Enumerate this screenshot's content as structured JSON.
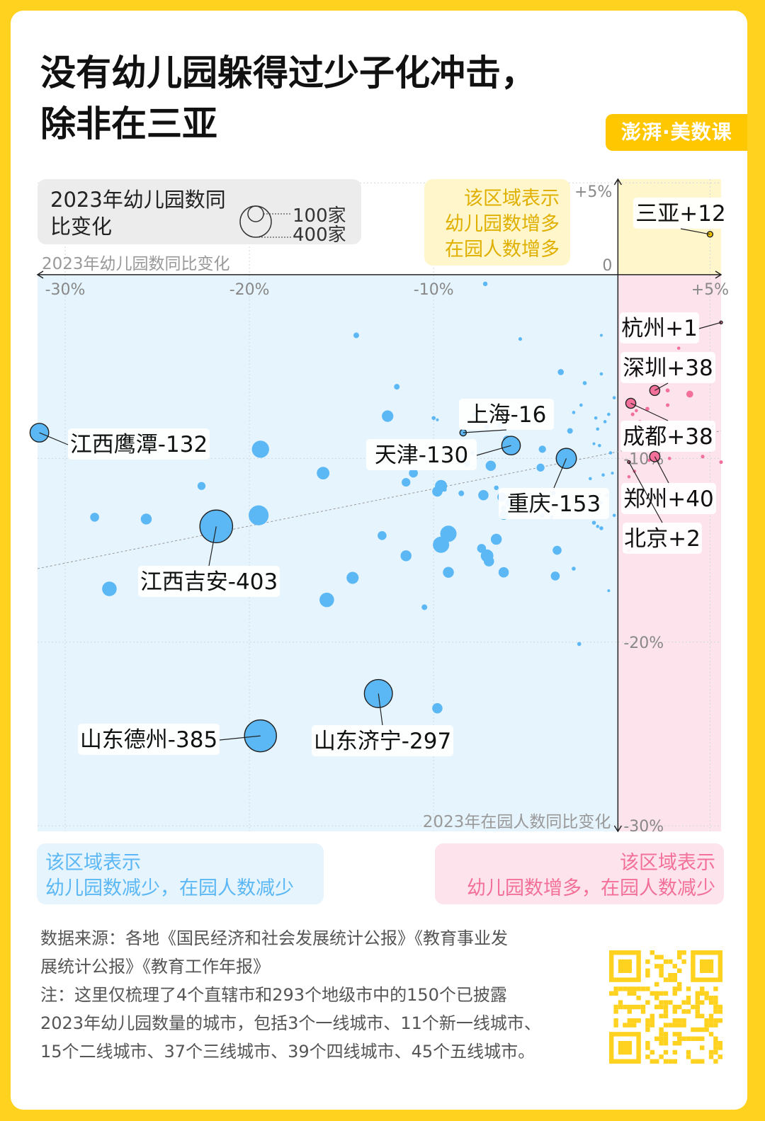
{
  "title": {
    "line1": "没有幼儿园躲得过少子化冲击，",
    "line2": "除非在三亚"
  },
  "brand": {
    "text": "澎湃·美数课"
  },
  "legend": {
    "title": "2023年幼儿园数同比变化",
    "size_small": "100家",
    "size_large": "400家"
  },
  "regions": {
    "top_right": "该区域表示\n幼儿园数增多\n在园人数增多",
    "bottom_left": "该区域表示\n幼儿园数减少，在园人数减少",
    "bottom_right": "该区域表示\n幼儿园数增多，在园人数减少"
  },
  "colors": {
    "decrease": "#5BB8F5",
    "increase": "#F2709A",
    "gain_gain": "#F2C500",
    "decrease_bg": "#E6F4FD",
    "increase_bg": "#FDE3EB",
    "gain_gain_bg": "#FFF6CC",
    "frame": "#FFD21F"
  },
  "notes": {
    "line1": "数据来源：各地《国民经济和社会发展统计公报》《教育事业发",
    "line2": "展统计公报》《教育工作年报》",
    "line3": "注：这里仅梳理了4个直辖市和293个地级市中的150个已披露",
    "line4": "2023年幼儿园数量的城市，包括3个一线城市、11个新一线城市、",
    "line5": "15个二线城市、37个三线城市、39个四线城市、45个五线城市。"
  },
  "chart_data": {
    "type": "scatter",
    "title": "",
    "xlabel": "2023年幼儿园数同比变化",
    "ylabel": "2023年在园人数同比变化",
    "xlim": [
      -31.5,
      5.6
    ],
    "ylim": [
      -30.3,
      5.2
    ],
    "xticks": [
      {
        "value": -30,
        "label": "-30%"
      },
      {
        "value": -20,
        "label": "-20%"
      },
      {
        "value": -10,
        "label": "-10%"
      },
      {
        "value": 5,
        "label": "+5%"
      }
    ],
    "yticks": [
      {
        "value": 5,
        "label": "+5%"
      },
      {
        "value": 0,
        "label": "0"
      },
      {
        "value": -10,
        "label": "-10%"
      },
      {
        "value": -20,
        "label": "-20%"
      },
      {
        "value": -30,
        "label": "-30%"
      }
    ],
    "grid": true,
    "size_encoding": "2023年幼儿园数变化（家）",
    "size_legend": [
      100,
      400
    ],
    "trendline": {
      "from": [
        -31.5,
        -16.0
      ],
      "to": [
        5.6,
        -8.5
      ]
    },
    "labeled": [
      {
        "city": "三亚",
        "label": "三亚+12",
        "x": 5.0,
        "y": 2.2,
        "size": 12,
        "group": "up"
      },
      {
        "city": "杭州",
        "label": "杭州+1",
        "x": 5.6,
        "y": -2.6,
        "size": 1,
        "group": "pink"
      },
      {
        "city": "深圳",
        "label": "深圳+38",
        "x": 2.0,
        "y": -6.3,
        "size": 38,
        "group": "pink"
      },
      {
        "city": "成都",
        "label": "成都+38",
        "x": 0.7,
        "y": -7.0,
        "size": 38,
        "group": "pink"
      },
      {
        "city": "郑州",
        "label": "郑州+40",
        "x": 2.0,
        "y": -9.9,
        "size": 40,
        "group": "pink"
      },
      {
        "city": "北京",
        "label": "北京+2",
        "x": 0.6,
        "y": -10.2,
        "size": 2,
        "group": "pink"
      },
      {
        "city": "江西鹰潭",
        "label": "江西鹰潭-132",
        "x": -31.4,
        "y": -8.6,
        "size": 132,
        "group": "blue"
      },
      {
        "city": "上海",
        "label": "上海-16",
        "x": -8.4,
        "y": -8.6,
        "size": 16,
        "group": "blue"
      },
      {
        "city": "天津",
        "label": "天津-130",
        "x": -5.8,
        "y": -9.3,
        "size": 130,
        "group": "blue"
      },
      {
        "city": "重庆",
        "label": "重庆-153",
        "x": -2.8,
        "y": -10.0,
        "size": 153,
        "group": "blue"
      },
      {
        "city": "江西吉安",
        "label": "江西吉安-403",
        "x": -21.8,
        "y": -13.7,
        "size": 403,
        "group": "blue"
      },
      {
        "city": "山东德州",
        "label": "山东德州-385",
        "x": -19.4,
        "y": -25.1,
        "size": 385,
        "group": "blue"
      },
      {
        "city": "山东济宁",
        "label": "山东济宁-297",
        "x": -13.0,
        "y": -22.8,
        "size": 297,
        "group": "blue"
      }
    ],
    "others": [
      [
        -7.2,
        -0.5,
        8
      ],
      [
        -14.2,
        -3.3,
        12
      ],
      [
        -5.3,
        -3.5,
        5
      ],
      [
        -12.0,
        -6.1,
        12
      ],
      [
        -3.1,
        -5.3,
        14
      ],
      [
        -1.8,
        -5.9,
        6
      ],
      [
        -12.5,
        -7.7,
        50
      ],
      [
        -10.0,
        -7.8,
        6
      ],
      [
        -9.8,
        -7.9,
        3
      ],
      [
        -7.8,
        -7.6,
        6
      ],
      [
        -6.5,
        -7.6,
        8
      ],
      [
        -6.4,
        -8.2,
        12
      ],
      [
        -7.1,
        -8.3,
        12
      ],
      [
        -6.0,
        -9.0,
        30
      ],
      [
        -19.4,
        -9.5,
        112
      ],
      [
        -9.4,
        -9.7,
        6
      ],
      [
        -7.9,
        -9.7,
        6
      ],
      [
        -4.1,
        -9.5,
        20
      ],
      [
        -2.6,
        -8.5,
        12
      ],
      [
        -8.4,
        -10.0,
        12
      ],
      [
        -8.2,
        -10.3,
        12
      ],
      [
        -6.9,
        -10.4,
        40
      ],
      [
        -4.2,
        -10.5,
        24
      ],
      [
        -16.0,
        -10.8,
        60
      ],
      [
        -11.1,
        -10.8,
        30
      ],
      [
        -11.5,
        -11.3,
        28
      ],
      [
        -9.4,
        -11.7,
        6
      ],
      [
        -9.8,
        -11.8,
        40
      ],
      [
        -6.6,
        -11.6,
        8
      ],
      [
        -22.6,
        -11.5,
        24
      ],
      [
        -9.6,
        -11.5,
        55
      ],
      [
        -8.5,
        -11.9,
        12
      ],
      [
        -7.3,
        -12.0,
        40
      ],
      [
        -6.3,
        -12.1,
        30
      ],
      [
        -5.9,
        -12.4,
        24
      ],
      [
        -3.5,
        -11.9,
        6
      ],
      [
        -2.0,
        -12.3,
        8
      ],
      [
        -6.2,
        -12.7,
        12
      ],
      [
        -6.2,
        -13.1,
        30
      ],
      [
        -4.7,
        -12.7,
        8
      ],
      [
        -4.1,
        -13.1,
        8
      ],
      [
        -3.6,
        -13.2,
        6
      ],
      [
        -19.5,
        -13.1,
        150
      ],
      [
        -28.4,
        -13.2,
        30
      ],
      [
        -25.6,
        -13.3,
        45
      ],
      [
        -1.3,
        -13.5,
        6
      ],
      [
        -0.9,
        -13.8,
        6
      ],
      [
        -12.8,
        -14.2,
        30
      ],
      [
        -9.2,
        -14.1,
        100
      ],
      [
        -9.6,
        -14.7,
        100
      ],
      [
        -6.6,
        -14.4,
        45
      ],
      [
        -7.4,
        -14.9,
        30
      ],
      [
        -3.3,
        -15.0,
        30
      ],
      [
        -7.1,
        -15.3,
        60
      ],
      [
        -7.0,
        -15.6,
        40
      ],
      [
        -11.5,
        -15.3,
        45
      ],
      [
        -9.2,
        -16.2,
        45
      ],
      [
        -14.4,
        -16.5,
        55
      ],
      [
        -27.6,
        -17.1,
        80
      ],
      [
        -6.2,
        -16.2,
        40
      ],
      [
        -3.4,
        -16.4,
        30
      ],
      [
        -2.4,
        -16.0,
        6
      ],
      [
        -15.8,
        -17.7,
        80
      ],
      [
        -10.5,
        -18.1,
        12
      ],
      [
        -2.1,
        -20.1,
        6
      ],
      [
        -9.8,
        -23.6,
        40
      ],
      [
        -0.5,
        -17.2,
        3
      ],
      [
        -0.2,
        -13.1,
        4
      ],
      [
        -0.6,
        -12.0,
        4
      ],
      [
        -0.9,
        -12.4,
        4
      ],
      [
        -0.8,
        -10.9,
        4
      ],
      [
        -1.0,
        -9.3,
        4
      ],
      [
        -1.1,
        -8.4,
        4
      ],
      [
        -0.7,
        -8.0,
        4
      ],
      [
        -1.2,
        -7.8,
        4
      ],
      [
        -0.5,
        -7.6,
        4
      ],
      [
        -2.4,
        -7.5,
        4
      ],
      [
        -0.2,
        -6.7,
        4
      ],
      [
        -0.9,
        -5.4,
        4
      ],
      [
        -0.9,
        -3.3,
        3
      ],
      [
        -2.0,
        -7.1,
        4
      ],
      [
        -0.4,
        -9.7,
        4
      ],
      [
        -1.3,
        -9.2,
        3
      ],
      [
        -1.5,
        -11.1,
        4
      ],
      [
        -0.3,
        -10.8,
        3
      ],
      [
        -1.1,
        -13.7,
        4
      ],
      [
        0.7,
        -5.6,
        12
      ],
      [
        1.1,
        -5.1,
        8
      ],
      [
        1.6,
        -7.3,
        6
      ],
      [
        0.8,
        -7.6,
        5
      ],
      [
        2.7,
        -6.3,
        6
      ],
      [
        3.9,
        -6.5,
        18
      ],
      [
        4.6,
        -9.9,
        5
      ],
      [
        5.6,
        -10.2,
        5
      ],
      [
        2.8,
        -8.6,
        8
      ],
      [
        1.7,
        -10.1,
        4
      ],
      [
        0.9,
        -10.7,
        4
      ],
      [
        0.6,
        -11.0,
        4
      ],
      [
        1.3,
        -12.0,
        4
      ],
      [
        0.7,
        -12.7,
        4
      ],
      [
        0.8,
        -13.8,
        4
      ],
      [
        0.6,
        -14.2,
        4
      ],
      [
        0.6,
        -15.0,
        4
      ],
      [
        2.7,
        -7.1,
        5
      ],
      [
        1.0,
        -7.4,
        4
      ],
      [
        2.1,
        -9.0,
        5
      ],
      [
        2.8,
        -10.0,
        4
      ],
      [
        1.4,
        -8.9,
        4
      ],
      [
        1.2,
        -8.0,
        4
      ],
      [
        2.3,
        -5.2,
        4
      ],
      [
        3.3,
        -4.0,
        4
      ],
      [
        1.3,
        -3.5,
        3
      ],
      [
        4.2,
        -9.2,
        3
      ]
    ]
  }
}
